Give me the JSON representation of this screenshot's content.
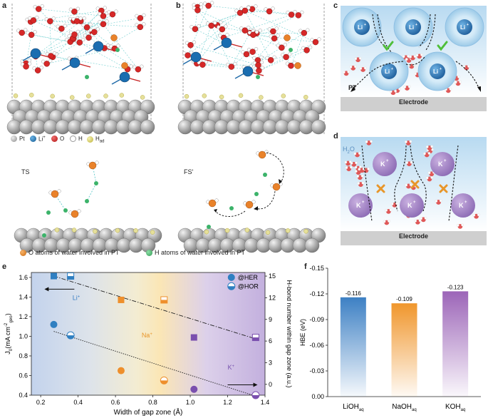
{
  "panels": {
    "a": "a",
    "b": "b",
    "c": "c",
    "d": "d",
    "e": "e",
    "f": "f"
  },
  "atom_legend": {
    "pt": "Pt",
    "li_main": "Li",
    "li_sup": "+",
    "o": "O",
    "h": "H",
    "had_main": "H",
    "had_sub": "ad"
  },
  "states": {
    "ts": "TS",
    "fs": "FS'"
  },
  "pt_legend": {
    "o_atoms": "O atoms of water involved in PT",
    "h_atoms": "H atoms of water involved in PT"
  },
  "panel_c": {
    "ion": "Li",
    "ion_sup": "+",
    "pt_label": "PT",
    "electrode": "Electrode",
    "colors": {
      "ion": "#2e7fbf",
      "shell": "#9ccae8"
    }
  },
  "panel_d": {
    "water_main": "H",
    "water_sub": "2",
    "water_tail": "O",
    "ion": "K",
    "ion_sup": "+",
    "electrode": "Electrode",
    "colors": {
      "ion": "#a98bc8",
      "cross": "#e8962a"
    }
  },
  "chart_data": [
    {
      "type": "scatter",
      "panel": "e",
      "xlabel": "Width of gap zone (Å)",
      "ylabel_left_main": "J",
      "ylabel_left_sub": "0",
      "ylabel_left_rest": " (mA cm",
      "ylabel_left_sup": "-2",
      "ylabel_left_sub2": "geo",
      "ylabel_left_end": ")",
      "ylabel_right": "H-bond number within gap zone (a.u.)",
      "xlim": [
        0.15,
        1.4
      ],
      "ylim_left": [
        0.4,
        1.65
      ],
      "ylim_right": [
        -1.5,
        15.5
      ],
      "xticks": [
        "0.2",
        "0.4",
        "0.6",
        "0.8",
        "1.0",
        "1.2",
        "1.4"
      ],
      "xtick_values": [
        0.2,
        0.4,
        0.6,
        0.8,
        1.0,
        1.2,
        1.4
      ],
      "yticks_left": [
        "0.4",
        "0.6",
        "0.8",
        "1.0",
        "1.2",
        "1.4",
        "1.6"
      ],
      "ytick_left_values": [
        0.4,
        0.6,
        0.8,
        1.0,
        1.2,
        1.4,
        1.6
      ],
      "yticks_right": [
        "0",
        "3",
        "6",
        "9",
        "12",
        "15"
      ],
      "ytick_right_values": [
        0,
        3,
        6,
        9,
        12,
        15
      ],
      "legend": [
        "@HER",
        "@HOR"
      ],
      "ion_labels": [
        {
          "text": "Li",
          "sup": "+",
          "x": 0.37,
          "y": 1.37,
          "color": "#3a7fc4"
        },
        {
          "text": "Na",
          "sup": "+",
          "x": 0.74,
          "y": 0.99,
          "color": "#e8962a"
        },
        {
          "text": "K",
          "sup": "+",
          "x": 1.2,
          "y": 0.66,
          "color": "#7a55b0"
        }
      ],
      "series": [
        {
          "name": "@HER J0",
          "marker": "circle-filled",
          "axis": "left",
          "points": [
            {
              "x": 0.27,
              "y": 1.12,
              "ion": "Li"
            },
            {
              "x": 0.63,
              "y": 0.65,
              "ion": "Na"
            },
            {
              "x": 1.02,
              "y": 0.46,
              "ion": "K"
            }
          ]
        },
        {
          "name": "@HOR J0",
          "marker": "circle-half",
          "axis": "left",
          "points": [
            {
              "x": 0.36,
              "y": 1.01,
              "ion": "Li"
            },
            {
              "x": 0.86,
              "y": 0.55,
              "ion": "Na"
            },
            {
              "x": 1.35,
              "y": 0.4,
              "ion": "K"
            }
          ]
        },
        {
          "name": "@HER H-bond",
          "marker": "square-filled",
          "axis": "right",
          "points": [
            {
              "x": 0.27,
              "y": 15.0,
              "ion": "Li"
            },
            {
              "x": 0.63,
              "y": 11.7,
              "ion": "Na"
            },
            {
              "x": 1.02,
              "y": 6.5,
              "ion": "K"
            }
          ]
        },
        {
          "name": "@HOR H-bond",
          "marker": "square-half",
          "axis": "right",
          "points": [
            {
              "x": 0.36,
              "y": 15.0,
              "ion": "Li"
            },
            {
              "x": 0.86,
              "y": 11.7,
              "ion": "Na"
            },
            {
              "x": 1.35,
              "y": 6.5,
              "ion": "K"
            }
          ]
        }
      ],
      "fit_lines": [
        {
          "axis": "right",
          "style": "dashdot",
          "from": [
            0.27,
            15.0
          ],
          "to": [
            1.35,
            6.3
          ]
        },
        {
          "axis": "left",
          "style": "dotted",
          "from": [
            0.27,
            1.05
          ],
          "to": [
            1.35,
            0.39
          ]
        }
      ],
      "colors": {
        "Li": "#2f7fc1",
        "Na": "#ee8f2c",
        "K": "#7a4fae"
      }
    },
    {
      "type": "bar",
      "panel": "f",
      "ylabel": "HBE (eV)",
      "ylim": [
        0.0,
        -0.15
      ],
      "yticks": [
        "0.00",
        "-0.03",
        "-0.06",
        "-0.09",
        "-0.12",
        "-0.15"
      ],
      "ytick_values": [
        0.0,
        -0.03,
        -0.06,
        -0.09,
        -0.12,
        -0.15
      ],
      "categories": [
        {
          "main": "LiOH",
          "sub": "aq"
        },
        {
          "main": "NaOH",
          "sub": "aq"
        },
        {
          "main": "KOH",
          "sub": "aq"
        }
      ],
      "values": [
        -0.116,
        -0.109,
        -0.123
      ],
      "value_labels": [
        "-0.116",
        "-0.109",
        "-0.123"
      ],
      "colors": [
        "#3d80c4",
        "#f0962c",
        "#9c65b8"
      ]
    }
  ]
}
